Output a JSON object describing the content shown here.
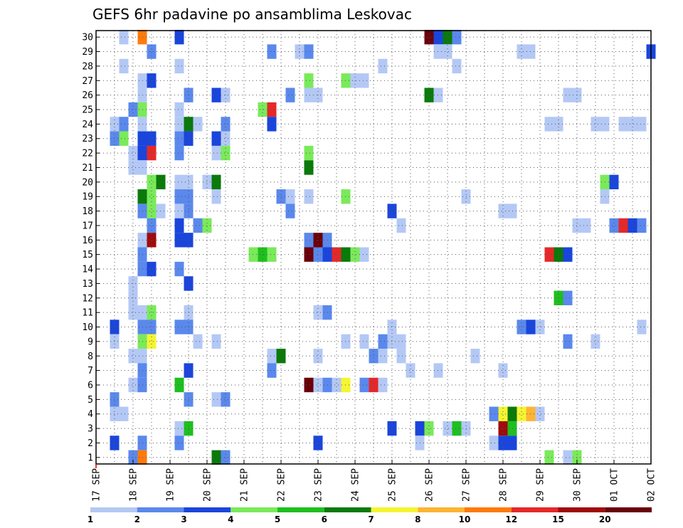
{
  "chart_data": {
    "type": "heatmap",
    "title": "GEFS 6hr padavine po ansamblima Leskovac",
    "x_tick_labels": [
      "17 SEP",
      "18 SEP",
      "19 SEP",
      "20 SEP",
      "21 SEP",
      "22 SEP",
      "23 SEP",
      "24 SEP",
      "25 SEP",
      "26 SEP",
      "27 SEP",
      "28 SEP",
      "29 SEP",
      "30 SEP",
      "01 OCT",
      "02 OCT"
    ],
    "y_tick_labels": [
      "1",
      "2",
      "3",
      "4",
      "5",
      "6",
      "7",
      "8",
      "9",
      "10",
      "11",
      "12",
      "13",
      "14",
      "15",
      "16",
      "17",
      "18",
      "19",
      "20",
      "21",
      "22",
      "23",
      "24",
      "25",
      "26",
      "27",
      "28",
      "29",
      "30"
    ],
    "x_unit": "6-hour step from 17 SEP 00Z",
    "xlim": [
      0,
      60
    ],
    "ylim": [
      1,
      30
    ],
    "grid": true,
    "colorbar": {
      "labels": [
        "1",
        "2",
        "3",
        "4",
        "5",
        "6",
        "7",
        "8",
        "10",
        "12",
        "15",
        "20"
      ],
      "colors": [
        "#b4c8f5",
        "#5a88ec",
        "#1a45dc",
        "#7aea5a",
        "#1ebf1e",
        "#0a7a0a",
        "#f5f532",
        "#ffb432",
        "#ff7a0a",
        "#e62828",
        "#a00a0a",
        "#6a000a"
      ]
    },
    "cells": [
      [
        30,
        3,
        1
      ],
      [
        30,
        5,
        9
      ],
      [
        30,
        9,
        3
      ],
      [
        30,
        36,
        12
      ],
      [
        30,
        37,
        3
      ],
      [
        30,
        38,
        6
      ],
      [
        30,
        39,
        2
      ],
      [
        29,
        6,
        2
      ],
      [
        29,
        19,
        2
      ],
      [
        29,
        22,
        1
      ],
      [
        29,
        23,
        2
      ],
      [
        29,
        37,
        1
      ],
      [
        29,
        38,
        1
      ],
      [
        29,
        46,
        1
      ],
      [
        29,
        47,
        1
      ],
      [
        29,
        60,
        3
      ],
      [
        28,
        3,
        1
      ],
      [
        28,
        9,
        1
      ],
      [
        28,
        31,
        1
      ],
      [
        28,
        39,
        1
      ],
      [
        27,
        5,
        1
      ],
      [
        27,
        6,
        3
      ],
      [
        27,
        23,
        4
      ],
      [
        27,
        27,
        4
      ],
      [
        27,
        28,
        1
      ],
      [
        27,
        29,
        1
      ],
      [
        26,
        5,
        1
      ],
      [
        26,
        10,
        2
      ],
      [
        26,
        13,
        3
      ],
      [
        26,
        14,
        1
      ],
      [
        26,
        21,
        2
      ],
      [
        26,
        23,
        1
      ],
      [
        26,
        24,
        1
      ],
      [
        26,
        36,
        6
      ],
      [
        26,
        37,
        1
      ],
      [
        26,
        51,
        1
      ],
      [
        26,
        52,
        1
      ],
      [
        25,
        4,
        2
      ],
      [
        25,
        5,
        4
      ],
      [
        25,
        9,
        1
      ],
      [
        25,
        18,
        4
      ],
      [
        25,
        19,
        10
      ],
      [
        24,
        2,
        1
      ],
      [
        24,
        3,
        2
      ],
      [
        24,
        5,
        1
      ],
      [
        24,
        9,
        1
      ],
      [
        24,
        10,
        6
      ],
      [
        24,
        11,
        1
      ],
      [
        24,
        14,
        2
      ],
      [
        24,
        19,
        3
      ],
      [
        24,
        49,
        1
      ],
      [
        24,
        50,
        1
      ],
      [
        24,
        54,
        1
      ],
      [
        24,
        55,
        1
      ],
      [
        24,
        57,
        1
      ],
      [
        24,
        58,
        1
      ],
      [
        24,
        59,
        1
      ],
      [
        23,
        2,
        2
      ],
      [
        23,
        3,
        4
      ],
      [
        23,
        5,
        3
      ],
      [
        23,
        6,
        3
      ],
      [
        23,
        9,
        2
      ],
      [
        23,
        10,
        3
      ],
      [
        23,
        13,
        3
      ],
      [
        23,
        14,
        1
      ],
      [
        22,
        4,
        1
      ],
      [
        22,
        5,
        3
      ],
      [
        22,
        6,
        10
      ],
      [
        22,
        9,
        2
      ],
      [
        22,
        13,
        1
      ],
      [
        22,
        14,
        4
      ],
      [
        22,
        23,
        4
      ],
      [
        21,
        4,
        1
      ],
      [
        21,
        5,
        1
      ],
      [
        21,
        23,
        6
      ],
      [
        20,
        6,
        4
      ],
      [
        20,
        7,
        6
      ],
      [
        20,
        9,
        1
      ],
      [
        20,
        10,
        1
      ],
      [
        20,
        12,
        1
      ],
      [
        20,
        13,
        6
      ],
      [
        20,
        55,
        4
      ],
      [
        20,
        56,
        3
      ],
      [
        19,
        5,
        6
      ],
      [
        19,
        6,
        4
      ],
      [
        19,
        9,
        2
      ],
      [
        19,
        10,
        2
      ],
      [
        19,
        13,
        1
      ],
      [
        19,
        20,
        2
      ],
      [
        19,
        21,
        1
      ],
      [
        19,
        23,
        1
      ],
      [
        19,
        27,
        4
      ],
      [
        19,
        40,
        1
      ],
      [
        19,
        55,
        1
      ],
      [
        18,
        5,
        2
      ],
      [
        18,
        6,
        4
      ],
      [
        18,
        7,
        1
      ],
      [
        18,
        9,
        1
      ],
      [
        18,
        10,
        2
      ],
      [
        18,
        21,
        2
      ],
      [
        18,
        32,
        3
      ],
      [
        18,
        44,
        1
      ],
      [
        18,
        45,
        1
      ],
      [
        17,
        6,
        2
      ],
      [
        17,
        9,
        3
      ],
      [
        17,
        11,
        2
      ],
      [
        17,
        12,
        4
      ],
      [
        17,
        33,
        1
      ],
      [
        17,
        52,
        1
      ],
      [
        17,
        53,
        1
      ],
      [
        17,
        56,
        2
      ],
      [
        17,
        57,
        10
      ],
      [
        17,
        58,
        3
      ],
      [
        17,
        59,
        2
      ],
      [
        16,
        5,
        1
      ],
      [
        16,
        6,
        11
      ],
      [
        16,
        9,
        3
      ],
      [
        16,
        10,
        3
      ],
      [
        16,
        23,
        2
      ],
      [
        16,
        24,
        12
      ],
      [
        16,
        25,
        2
      ],
      [
        15,
        5,
        2
      ],
      [
        15,
        17,
        4
      ],
      [
        15,
        18,
        5
      ],
      [
        15,
        19,
        4
      ],
      [
        15,
        23,
        12
      ],
      [
        15,
        24,
        2
      ],
      [
        15,
        25,
        3
      ],
      [
        15,
        26,
        10
      ],
      [
        15,
        27,
        6
      ],
      [
        15,
        28,
        4
      ],
      [
        15,
        29,
        1
      ],
      [
        15,
        49,
        10
      ],
      [
        15,
        50,
        6
      ],
      [
        15,
        51,
        3
      ],
      [
        14,
        5,
        2
      ],
      [
        14,
        6,
        3
      ],
      [
        14,
        9,
        2
      ],
      [
        13,
        4,
        1
      ],
      [
        13,
        10,
        3
      ],
      [
        12,
        4,
        1
      ],
      [
        12,
        50,
        5
      ],
      [
        12,
        51,
        2
      ],
      [
        11,
        4,
        1
      ],
      [
        11,
        5,
        1
      ],
      [
        11,
        6,
        4
      ],
      [
        11,
        10,
        1
      ],
      [
        11,
        24,
        1
      ],
      [
        11,
        25,
        2
      ],
      [
        10,
        2,
        3
      ],
      [
        10,
        5,
        2
      ],
      [
        10,
        6,
        2
      ],
      [
        10,
        9,
        2
      ],
      [
        10,
        10,
        2
      ],
      [
        10,
        32,
        1
      ],
      [
        10,
        46,
        2
      ],
      [
        10,
        47,
        3
      ],
      [
        10,
        48,
        1
      ],
      [
        10,
        59,
        1
      ],
      [
        9,
        2,
        1
      ],
      [
        9,
        5,
        4
      ],
      [
        9,
        6,
        7
      ],
      [
        9,
        11,
        1
      ],
      [
        9,
        13,
        1
      ],
      [
        9,
        27,
        1
      ],
      [
        9,
        29,
        1
      ],
      [
        9,
        31,
        2
      ],
      [
        9,
        32,
        1
      ],
      [
        9,
        33,
        1
      ],
      [
        9,
        51,
        2
      ],
      [
        9,
        54,
        1
      ],
      [
        8,
        4,
        1
      ],
      [
        8,
        5,
        1
      ],
      [
        8,
        19,
        1
      ],
      [
        8,
        20,
        6
      ],
      [
        8,
        24,
        1
      ],
      [
        8,
        30,
        2
      ],
      [
        8,
        31,
        1
      ],
      [
        8,
        33,
        1
      ],
      [
        8,
        41,
        1
      ],
      [
        7,
        5,
        2
      ],
      [
        7,
        10,
        3
      ],
      [
        7,
        19,
        2
      ],
      [
        7,
        34,
        1
      ],
      [
        7,
        37,
        1
      ],
      [
        7,
        44,
        1
      ],
      [
        6,
        4,
        1
      ],
      [
        6,
        5,
        2
      ],
      [
        6,
        9,
        5
      ],
      [
        6,
        23,
        12
      ],
      [
        6,
        24,
        1
      ],
      [
        6,
        25,
        2
      ],
      [
        6,
        26,
        1
      ],
      [
        6,
        27,
        7
      ],
      [
        6,
        29,
        2
      ],
      [
        6,
        30,
        10
      ],
      [
        6,
        31,
        1
      ],
      [
        5,
        2,
        2
      ],
      [
        5,
        10,
        2
      ],
      [
        5,
        13,
        1
      ],
      [
        5,
        14,
        2
      ],
      [
        4,
        2,
        1
      ],
      [
        4,
        3,
        1
      ],
      [
        4,
        43,
        2
      ],
      [
        4,
        44,
        7
      ],
      [
        4,
        45,
        6
      ],
      [
        4,
        46,
        7
      ],
      [
        4,
        47,
        8
      ],
      [
        4,
        48,
        1
      ],
      [
        3,
        9,
        1
      ],
      [
        3,
        10,
        5
      ],
      [
        3,
        32,
        3
      ],
      [
        3,
        35,
        3
      ],
      [
        3,
        36,
        4
      ],
      [
        3,
        38,
        1
      ],
      [
        3,
        39,
        5
      ],
      [
        3,
        40,
        1
      ],
      [
        3,
        44,
        11
      ],
      [
        3,
        45,
        5
      ],
      [
        2,
        2,
        3
      ],
      [
        2,
        5,
        2
      ],
      [
        2,
        9,
        2
      ],
      [
        2,
        24,
        3
      ],
      [
        2,
        35,
        1
      ],
      [
        2,
        43,
        1
      ],
      [
        2,
        44,
        3
      ],
      [
        2,
        45,
        3
      ],
      [
        1,
        4,
        2
      ],
      [
        1,
        5,
        9
      ],
      [
        1,
        13,
        6
      ],
      [
        1,
        14,
        2
      ],
      [
        1,
        49,
        4
      ],
      [
        1,
        51,
        1
      ],
      [
        1,
        52,
        4
      ]
    ],
    "cell_format": [
      "member",
      "step",
      "color_class_index"
    ]
  }
}
